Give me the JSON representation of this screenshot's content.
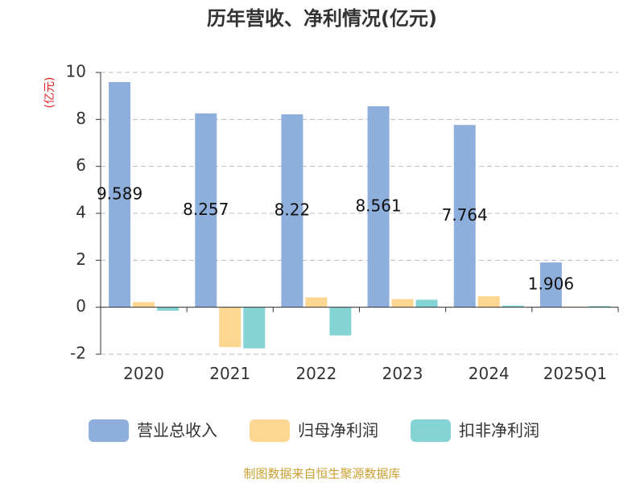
{
  "chart_data": {
    "type": "bar",
    "title": "历年营收、净利情况(亿元)",
    "y_label": "(亿元)",
    "categories": [
      "2020",
      "2021",
      "2022",
      "2023",
      "2024",
      "2025Q1"
    ],
    "series": [
      {
        "name": "营业总收入",
        "color": "#8eaedb",
        "values": [
          9.589,
          8.257,
          8.22,
          8.561,
          7.764,
          1.906
        ],
        "show_labels": true
      },
      {
        "name": "归母净利润",
        "color": "#fdd692",
        "values": [
          0.22,
          -1.7,
          0.42,
          0.35,
          0.47,
          0.03
        ],
        "show_labels": false
      },
      {
        "name": "扣非净利润",
        "color": "#84d4d6",
        "values": [
          -0.15,
          -1.75,
          -1.2,
          0.32,
          0.07,
          0.05
        ],
        "show_labels": false
      }
    ],
    "ylim": [
      -2,
      10
    ],
    "yticks": [
      -2,
      0,
      2,
      4,
      6,
      8,
      10
    ],
    "grid": true,
    "legend": "bottom",
    "source": "制图数据来自恒生聚源数据库"
  }
}
